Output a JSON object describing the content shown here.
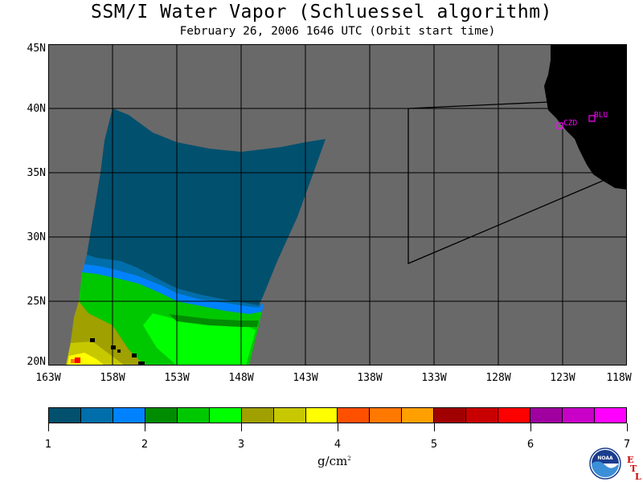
{
  "title": "SSM/I Water Vapor (Schluessel algorithm)",
  "subtitle": "February 26, 2006  1646 UTC  (Orbit start time)",
  "map": {
    "lat_range": [
      20,
      45
    ],
    "lon_range": [
      -163,
      -118
    ],
    "lat_ticks": [
      "45N",
      "40N",
      "35N",
      "30N",
      "25N",
      "20N"
    ],
    "lon_ticks": [
      "163W",
      "158W",
      "153W",
      "148W",
      "143W",
      "138W",
      "133W",
      "128W",
      "123W",
      "118W"
    ],
    "stations": [
      {
        "label": "CZD",
        "lat": 38.6,
        "lon": -123.2
      },
      {
        "label": "BLU",
        "lat": 39.3,
        "lon": -120.7
      }
    ],
    "colors": {
      "background": "#696969",
      "land": "#000000",
      "grid": "#000000",
      "station": "#ff00ff"
    }
  },
  "colorbar": {
    "ticks": [
      "1",
      "2",
      "3",
      "4",
      "5",
      "6",
      "7"
    ],
    "colors": [
      "#00506e",
      "#006eaa",
      "#0082ff",
      "#008c00",
      "#00c800",
      "#00ff00",
      "#a0a000",
      "#c8c800",
      "#ffff00",
      "#ff5000",
      "#ff7800",
      "#ffa000",
      "#a00000",
      "#c80000",
      "#ff0000",
      "#a000a0",
      "#c800c8",
      "#ff00ff"
    ],
    "units": "g/cm",
    "units_sup": "2"
  },
  "logo": {
    "text": "NOAA",
    "etl": [
      "E",
      "T",
      "L"
    ]
  }
}
